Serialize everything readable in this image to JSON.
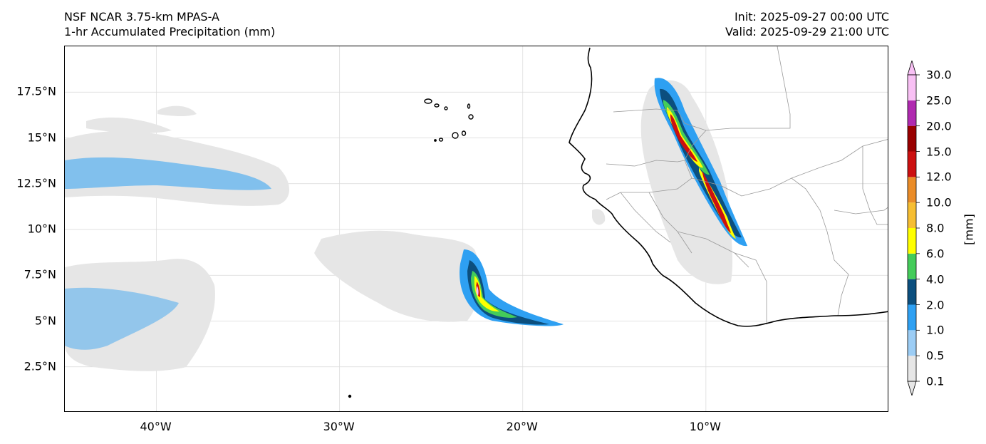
{
  "header": {
    "model": "NSF NCAR 3.75-km MPAS-A",
    "field": "1-hr Accumulated Precipitation (mm)",
    "init": "Init: 2025-09-27 00:00 UTC",
    "valid": "Valid: 2025-09-29 21:00 UTC"
  },
  "map": {
    "projection": "PlateCarree",
    "lon_range": [
      -45,
      0
    ],
    "lat_range": [
      0,
      20
    ],
    "gridlines": true,
    "lat_ticks": [
      "2.5°N",
      "5°N",
      "7.5°N",
      "10°N",
      "12.5°N",
      "15°N",
      "17.5°N"
    ],
    "lon_ticks": [
      "40°W",
      "30°W",
      "20°W",
      "10°W"
    ],
    "lat_values": [
      2.5,
      5,
      7.5,
      10,
      12.5,
      15,
      17.5
    ],
    "lon_values": [
      -40,
      -30,
      -20,
      -10
    ],
    "features": [
      "coastline",
      "country-borders",
      "Cape Verde islands"
    ]
  },
  "colorbar": {
    "unit": "[mm]",
    "levels": [
      "0.1",
      "0.5",
      "1.0",
      "2.0",
      "4.0",
      "6.0",
      "8.0",
      "10.0",
      "12.0",
      "15.0",
      "20.0",
      "25.0",
      "30.0"
    ],
    "colors": [
      "#e6e6e6",
      "#9ccdf5",
      "#2ea0f2",
      "#0c4f7e",
      "#44cc5a",
      "#ffff00",
      "#f6be32",
      "#ea8c28",
      "#cc1010",
      "#990000",
      "#b02ab0",
      "#f8c0f4"
    ],
    "extend": "both"
  },
  "colors": {
    "coast": "#000000",
    "borders": "#999999",
    "grid": "#d8d8d8"
  }
}
